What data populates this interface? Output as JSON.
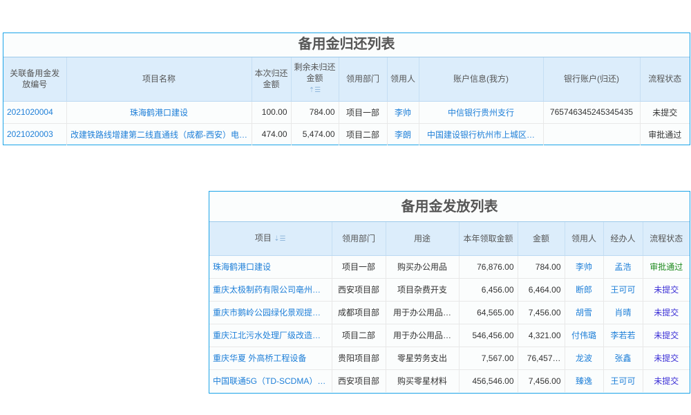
{
  "return_table": {
    "title": "备用金归还列表",
    "headers": [
      "关联备用金发放编号",
      "项目名称",
      "本次归还金额",
      "剩余未归还金额",
      "领用部门",
      "领用人",
      "账户信息(我方)",
      "银行账户(归还)",
      "流程状态"
    ],
    "sort_icon": "sort-ascending-icon",
    "rows": [
      [
        "2021020004",
        "珠海鹤港口建设",
        "100.00",
        "784.00",
        "项目一部",
        "李帅",
        "中信银行贵州支行",
        "765746345245345435",
        "未提交"
      ],
      [
        "2021020003",
        "改建铁路线增建第二线直通线（成都-西安）电…",
        "474.00",
        "5,474.00",
        "项目二部",
        "李朗",
        "中国建设银行杭州市上城区…",
        "",
        "审批通过"
      ]
    ]
  },
  "issue_table": {
    "title": "备用金发放列表",
    "headers": [
      "项目",
      "领用部门",
      "用途",
      "本年领取金额",
      "金额",
      "领用人",
      "经办人",
      "流程状态"
    ],
    "sort_icon": "sort-descending-icon",
    "status_colors": {
      "审批通过": "#1e8a1e",
      "未提交": "#3b2fd6"
    },
    "rows": [
      [
        "珠海鹤港口建设",
        "项目一部",
        "购买办公用品",
        "76,876.00",
        "784.00",
        "李帅",
        "孟浩",
        "审批通过"
      ],
      [
        "重庆太极制药有限公司亳州…",
        "西安项目部",
        "项目杂费开支",
        "6,456.00",
        "6,464.00",
        "断郎",
        "王可可",
        "未提交"
      ],
      [
        "重庆市鹅岭公园绿化景观提…",
        "成都项目部",
        "用于办公用品…",
        "64,565.00",
        "7,456.00",
        "胡雪",
        "肖晴",
        "未提交"
      ],
      [
        "重庆江北污水处理厂级改造…",
        "项目二部",
        "用于办公用品…",
        "546,456.00",
        "4,321.00",
        "付伟璐",
        "李若若",
        "未提交"
      ],
      [
        "重庆华夏 外高桥工程设备",
        "贵阳项目部",
        "零星劳务支出",
        "7,567.00",
        "76,457…",
        "龙波",
        "张鑫",
        "未提交"
      ],
      [
        "中国联通5G（TD-SCDMA）…",
        "西安项目部",
        "购买零星材料",
        "456,546.00",
        "7,456.00",
        "臻逸",
        "王可可",
        "未提交"
      ]
    ]
  }
}
